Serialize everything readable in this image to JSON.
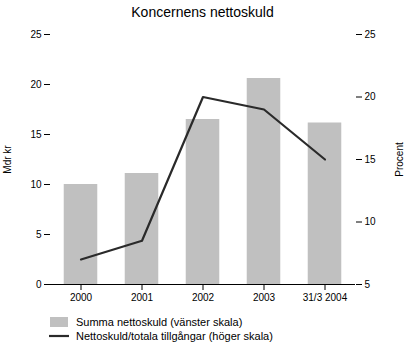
{
  "chart_data": {
    "type": "bar",
    "title": "Koncernens nettoskuld",
    "categories": [
      "2000",
      "2001",
      "2002",
      "2003",
      "31/3 2004"
    ],
    "series": [
      {
        "name": "Summa nettoskuld (vänster skala)",
        "type": "bar",
        "color": "#c0c0c0",
        "values": [
          10.0,
          11.1,
          16.5,
          20.6,
          16.15
        ]
      },
      {
        "name": "Nettoskuld/totala tillgångar (höger skala)",
        "type": "line",
        "color": "#2a2a2a",
        "axis": "y2",
        "values": [
          7.0,
          8.5,
          20.0,
          19.0,
          15.0
        ]
      }
    ],
    "ylim": [
      0,
      25
    ],
    "yticks": [
      0,
      5,
      10,
      15,
      20,
      25
    ],
    "y2lim": [
      5,
      25
    ],
    "y2ticks": [
      5,
      10,
      15,
      20,
      25
    ],
    "ylabel": "Mdr kr",
    "y2label": "Procent",
    "grid": false,
    "legend": "lower left"
  }
}
